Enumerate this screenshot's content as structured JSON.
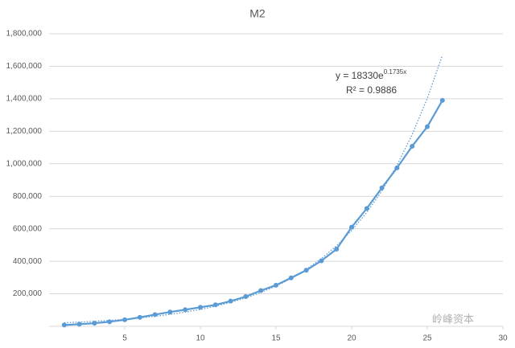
{
  "chart_data": {
    "type": "line",
    "title": "M2",
    "x": [
      1,
      2,
      3,
      4,
      5,
      6,
      7,
      8,
      9,
      10,
      11,
      12,
      13,
      14,
      15,
      16,
      17,
      18,
      19,
      20,
      21,
      22,
      23,
      24,
      25,
      26
    ],
    "series": [
      {
        "color": "#5b9bd5",
        "values": [
          8000,
          13000,
          19000,
          28000,
          40000,
          55000,
          72000,
          88000,
          102000,
          117000,
          132000,
          155000,
          183000,
          220000,
          253000,
          298000,
          345000,
          403000,
          475000,
          610000,
          725000,
          852000,
          975000,
          1108000,
          1228000,
          1390000
        ]
      }
    ],
    "trendline": {
      "color": "#5b9bd5",
      "dashed": true,
      "x": [
        1,
        2,
        3,
        4,
        5,
        6,
        7,
        8,
        9,
        10,
        11,
        12,
        13,
        14,
        15,
        16,
        17,
        18,
        19,
        20,
        21,
        22,
        23,
        24,
        25,
        26
      ],
      "values": [
        21800,
        25900,
        30800,
        36700,
        43600,
        51900,
        61800,
        73500,
        87400,
        103900,
        123600,
        147000,
        174900,
        208000,
        247400,
        294300,
        350000,
        416400,
        495300,
        589100,
        700700,
        833500,
        991400,
        1179200,
        1402600,
        1668300
      ]
    },
    "annotations": {
      "equation": "y = 18330e",
      "exponent": "0.1735x",
      "r2": "R² = 0.9886"
    },
    "watermark": "岭峰资本",
    "xlim": [
      0,
      30
    ],
    "xticks": [
      5,
      10,
      15,
      20,
      25,
      30
    ],
    "ylim": [
      0,
      1800000
    ],
    "yticks": [
      {
        "value": 200000,
        "label": "200,000"
      },
      {
        "value": 400000,
        "label": "400,000"
      },
      {
        "value": 600000,
        "label": "600,000"
      },
      {
        "value": 800000,
        "label": "800,000"
      },
      {
        "value": 1000000,
        "label": "1,000,000"
      },
      {
        "value": 1200000,
        "label": "1,200,000"
      },
      {
        "value": 1400000,
        "label": "1,400,000"
      },
      {
        "value": 1600000,
        "label": "1,600,000"
      },
      {
        "value": 1800000,
        "label": "1,800,000"
      }
    ],
    "grid": true
  }
}
